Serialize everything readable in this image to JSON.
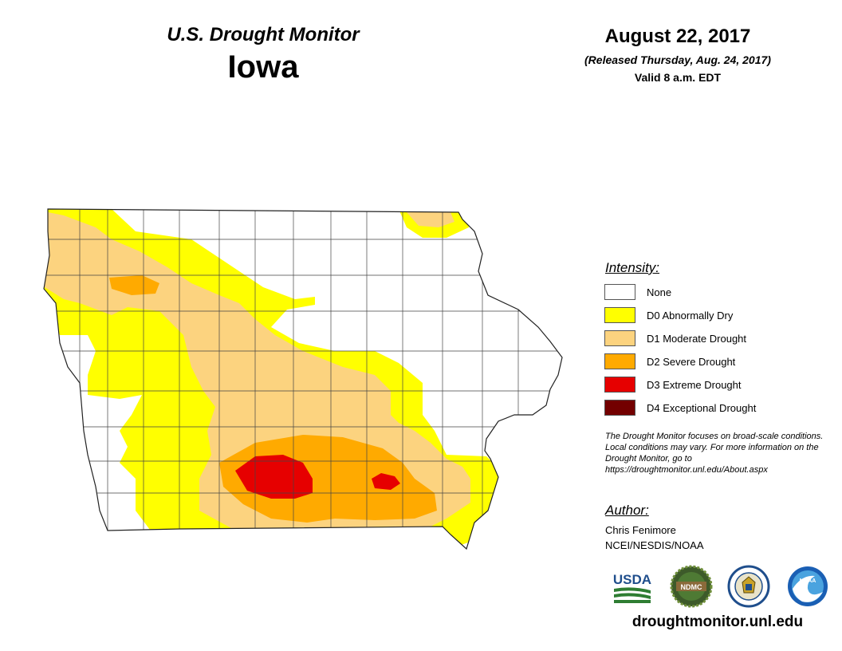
{
  "header": {
    "title": "U.S. Drought Monitor",
    "state": "Iowa",
    "date": "August 22, 2017",
    "released": "(Released Thursday, Aug. 24, 2017)",
    "valid": "Valid 8 a.m. EDT"
  },
  "legend": {
    "title": "Intensity:",
    "items": [
      {
        "label": "None",
        "color": "#ffffff"
      },
      {
        "label": "D0 Abnormally Dry",
        "color": "#ffff00"
      },
      {
        "label": "D1 Moderate Drought",
        "color": "#fcd37f"
      },
      {
        "label": "D2 Severe Drought",
        "color": "#ffaa00"
      },
      {
        "label": "D3 Extreme Drought",
        "color": "#e60000"
      },
      {
        "label": "D4 Exceptional Drought",
        "color": "#730000"
      }
    ]
  },
  "note": "The Drought Monitor focuses on broad-scale conditions. Local conditions may vary. For more information on the Drought Monitor, go to https://droughtmonitor.unl.edu/About.aspx",
  "author": {
    "title": "Author:",
    "name": "Chris Fenimore",
    "org": "NCEI/NESDIS/NOAA"
  },
  "logos": [
    {
      "name": "usda-logo",
      "text": "USDA"
    },
    {
      "name": "ndmc-logo",
      "text": "NDMC"
    },
    {
      "name": "doc-seal-logo",
      "text": ""
    },
    {
      "name": "noaa-logo",
      "text": "NOAA"
    }
  ],
  "website": "droughtmonitor.unl.edu"
}
